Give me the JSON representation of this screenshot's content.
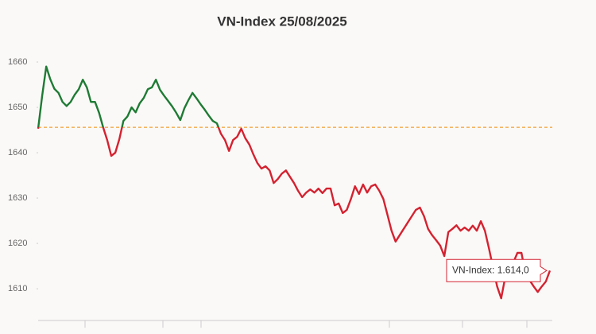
{
  "chart_data": {
    "type": "line",
    "title": "VN-Index 25/08/2025",
    "series": [
      {
        "name": "VN-Index",
        "color_above": "#1e7b34",
        "color_below": "#d42230",
        "values": [
          1645.3,
          1652.6,
          1659,
          1656.2,
          1654.1,
          1653.2,
          1651.2,
          1650.3,
          1651.2,
          1652.8,
          1654,
          1656.1,
          1654.4,
          1651.2,
          1651.2,
          1648.8,
          1645.6,
          1642.8,
          1639.3,
          1640,
          1643,
          1647,
          1648,
          1650,
          1648.9,
          1650.9,
          1652.1,
          1654,
          1654.4,
          1656.1,
          1653.9,
          1652.6,
          1651.4,
          1650.2,
          1648.8,
          1647.2,
          1649.8,
          1651.6,
          1653.2,
          1652,
          1650.7,
          1649.5,
          1648.2,
          1647,
          1646.5,
          1644.2,
          1642.8,
          1640.4,
          1642.8,
          1643.5,
          1645.3,
          1643.2,
          1641.8,
          1639.6,
          1637.7,
          1636.5,
          1637,
          1636.1,
          1633.3,
          1634.2,
          1635.4,
          1636.1,
          1634.7,
          1633.3,
          1631.6,
          1630.2,
          1631.2,
          1631.9,
          1631.2,
          1632.1,
          1631.1,
          1632.1,
          1632.1,
          1628.4,
          1628.8,
          1626.7,
          1627.4,
          1629.8,
          1632.6,
          1630.9,
          1633,
          1631.2,
          1632.6,
          1633,
          1631.6,
          1629.8,
          1626.3,
          1622.8,
          1620.4,
          1621.8,
          1623.2,
          1624.6,
          1626,
          1627.4,
          1627.9,
          1626,
          1623.2,
          1621.8,
          1620.7,
          1619.5,
          1617.2,
          1622.5,
          1623.2,
          1624,
          1622.8,
          1623.5,
          1622.8,
          1623.9,
          1622.8,
          1624.9,
          1622.8,
          1618.9,
          1614.7,
          1610.5,
          1607.9,
          1612.6,
          1614,
          1615.8,
          1617.9,
          1617.9,
          1613.3,
          1611.9,
          1610.5,
          1609.3,
          1610.5,
          1611.6,
          1614
        ]
      }
    ],
    "reference": 1645.6,
    "reference_color": "#f0a030",
    "ylim": [
      1603,
      1665
    ],
    "yticks": [
      1610,
      1620,
      1630,
      1640,
      1650,
      1660
    ],
    "tooltip": "VN-Index: 1.614,0"
  }
}
